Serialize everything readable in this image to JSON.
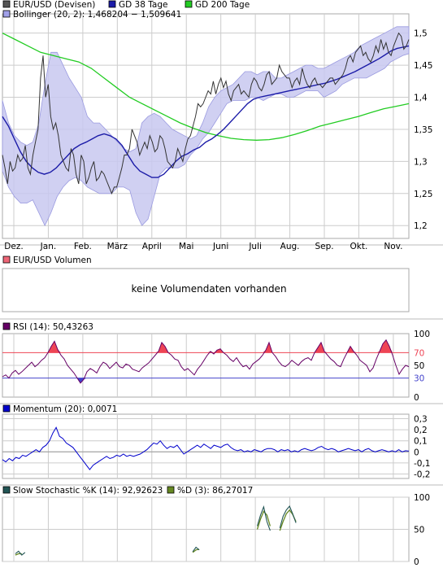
{
  "colors": {
    "price": "#333333",
    "gd38": "#1c1ca8",
    "gd200": "#22cc22",
    "band_fill": "#c8c8f0",
    "band_edge": "#9a9ae0",
    "rsi_line": "#660066",
    "rsi_hi": "#ee4455",
    "rsi_lo": "#4444cc",
    "momentum": "#0000cc",
    "stoch_k": "#225555",
    "stoch_d": "#668822",
    "grid": "#cccccc"
  },
  "chart_data": [
    {
      "id": "price",
      "type": "line",
      "legend": [
        {
          "label": "EUR/USD (Devisen)",
          "color": "#555555"
        },
        {
          "label": "GD 38 Tage",
          "color": "#1c1ca8"
        },
        {
          "label": "GD 200 Tage",
          "color": "#22cc22"
        },
        {
          "label": "Bollinger (20, 2): 1,468204 − 1,509641",
          "color": "#a0a0e8"
        }
      ],
      "xlabels": [
        "Dez.",
        "Jan.",
        "Feb.",
        "März",
        "April",
        "Mai",
        "Juni",
        "Juli",
        "Aug.",
        "Sep.",
        "Okt.",
        "Nov."
      ],
      "yticks": [
        "1,2",
        "1,25",
        "1,3",
        "1,35",
        "1,4",
        "1,45",
        "1,5"
      ],
      "ylim": [
        1.18,
        1.53
      ],
      "series": [
        {
          "name": "EUR/USD (Devisen)",
          "values": [
            1.31,
            1.29,
            1.265,
            1.3,
            1.285,
            1.29,
            1.31,
            1.3,
            1.305,
            1.325,
            1.29,
            1.28,
            1.31,
            1.33,
            1.35,
            1.43,
            1.465,
            1.4,
            1.42,
            1.37,
            1.35,
            1.36,
            1.34,
            1.31,
            1.3,
            1.29,
            1.285,
            1.32,
            1.31,
            1.28,
            1.265,
            1.31,
            1.3,
            1.265,
            1.275,
            1.29,
            1.3,
            1.27,
            1.275,
            1.285,
            1.28,
            1.27,
            1.26,
            1.25,
            1.26,
            1.26,
            1.275,
            1.29,
            1.31,
            1.31,
            1.32,
            1.35,
            1.34,
            1.33,
            1.31,
            1.32,
            1.33,
            1.32,
            1.34,
            1.33,
            1.315,
            1.32,
            1.34,
            1.335,
            1.32,
            1.3,
            1.295,
            1.29,
            1.3,
            1.32,
            1.31,
            1.3,
            1.32,
            1.335,
            1.34,
            1.355,
            1.37,
            1.39,
            1.385,
            1.39,
            1.4,
            1.41,
            1.405,
            1.425,
            1.405,
            1.42,
            1.43,
            1.415,
            1.425,
            1.405,
            1.395,
            1.41,
            1.415,
            1.42,
            1.405,
            1.41,
            1.405,
            1.4,
            1.42,
            1.43,
            1.425,
            1.415,
            1.41,
            1.42,
            1.435,
            1.44,
            1.42,
            1.425,
            1.43,
            1.45,
            1.44,
            1.435,
            1.43,
            1.43,
            1.415,
            1.425,
            1.43,
            1.42,
            1.445,
            1.43,
            1.42,
            1.415,
            1.425,
            1.43,
            1.42,
            1.42,
            1.415,
            1.42,
            1.425,
            1.43,
            1.43,
            1.42,
            1.425,
            1.43,
            1.435,
            1.445,
            1.46,
            1.465,
            1.455,
            1.47,
            1.475,
            1.48,
            1.465,
            1.47,
            1.46,
            1.455,
            1.465,
            1.48,
            1.47,
            1.49,
            1.475,
            1.485,
            1.47,
            1.465,
            1.48,
            1.49,
            1.5,
            1.495,
            1.475,
            1.48,
            1.49
          ]
        },
        {
          "name": "GD 38 Tage",
          "values": [
            1.37,
            1.355,
            1.335,
            1.315,
            1.3,
            1.29,
            1.283,
            1.28,
            1.283,
            1.29,
            1.3,
            1.31,
            1.32,
            1.326,
            1.33,
            1.335,
            1.34,
            1.343,
            1.34,
            1.335,
            1.325,
            1.31,
            1.295,
            1.285,
            1.28,
            1.275,
            1.275,
            1.28,
            1.29,
            1.3,
            1.308,
            1.312,
            1.318,
            1.322,
            1.33,
            1.335,
            1.342,
            1.35,
            1.36,
            1.37,
            1.38,
            1.39,
            1.397,
            1.4,
            1.402,
            1.404,
            1.406,
            1.408,
            1.41,
            1.412,
            1.414,
            1.416,
            1.418,
            1.42,
            1.422,
            1.425,
            1.428,
            1.432,
            1.436,
            1.44,
            1.445,
            1.45,
            1.455,
            1.46,
            1.466,
            1.472,
            1.476,
            1.478,
            1.48
          ]
        },
        {
          "name": "GD 200 Tage",
          "values": [
            1.5,
            1.49,
            1.48,
            1.47,
            1.465,
            1.46,
            1.455,
            1.445,
            1.43,
            1.415,
            1.4,
            1.39,
            1.38,
            1.37,
            1.36,
            1.352,
            1.345,
            1.34,
            1.336,
            1.334,
            1.333,
            1.334,
            1.337,
            1.342,
            1.348,
            1.355,
            1.36,
            1.365,
            1.37,
            1.376,
            1.382,
            1.386,
            1.39
          ]
        },
        {
          "name": "Bollinger upper",
          "values": [
            1.395,
            1.36,
            1.34,
            1.33,
            1.325,
            1.33,
            1.36,
            1.42,
            1.47,
            1.47,
            1.45,
            1.43,
            1.415,
            1.4,
            1.37,
            1.36,
            1.36,
            1.35,
            1.34,
            1.33,
            1.32,
            1.315,
            1.32,
            1.36,
            1.37,
            1.375,
            1.37,
            1.36,
            1.35,
            1.345,
            1.34,
            1.335,
            1.34,
            1.36,
            1.385,
            1.4,
            1.41,
            1.415,
            1.42,
            1.43,
            1.44,
            1.44,
            1.435,
            1.44,
            1.44,
            1.43,
            1.43,
            1.435,
            1.44,
            1.445,
            1.45,
            1.45,
            1.445,
            1.445,
            1.45,
            1.455,
            1.46,
            1.465,
            1.47,
            1.48,
            1.485,
            1.49,
            1.495,
            1.5,
            1.505,
            1.51,
            1.51,
            1.51
          ]
        },
        {
          "name": "Bollinger lower",
          "values": [
            1.285,
            1.26,
            1.245,
            1.235,
            1.235,
            1.24,
            1.22,
            1.2,
            1.22,
            1.245,
            1.26,
            1.27,
            1.275,
            1.27,
            1.26,
            1.255,
            1.25,
            1.25,
            1.25,
            1.26,
            1.26,
            1.255,
            1.22,
            1.2,
            1.21,
            1.245,
            1.28,
            1.29,
            1.29,
            1.29,
            1.295,
            1.31,
            1.32,
            1.335,
            1.345,
            1.36,
            1.375,
            1.39,
            1.395,
            1.395,
            1.395,
            1.4,
            1.4,
            1.395,
            1.4,
            1.405,
            1.405,
            1.4,
            1.4,
            1.405,
            1.41,
            1.41,
            1.41,
            1.4,
            1.405,
            1.41,
            1.42,
            1.425,
            1.43,
            1.43,
            1.43,
            1.435,
            1.44,
            1.445,
            1.455,
            1.46,
            1.465,
            1.468
          ]
        }
      ]
    },
    {
      "id": "volume",
      "type": "line",
      "legend": [
        {
          "label": "EUR/USD Volumen",
          "color": "#ee6677"
        }
      ],
      "message": "keine Volumendaten vorhanden"
    },
    {
      "id": "rsi",
      "type": "line",
      "legend": [
        {
          "label": "RSI (14): 50,43263",
          "color": "#660066"
        }
      ],
      "yticks": [
        "0",
        "30",
        "50",
        "70",
        "100"
      ],
      "ylim": [
        0,
        100
      ],
      "levels": [
        30,
        70
      ],
      "series": [
        {
          "name": "RSI (14)",
          "values": [
            32,
            35,
            30,
            38,
            42,
            36,
            40,
            45,
            50,
            55,
            48,
            52,
            58,
            62,
            70,
            80,
            88,
            75,
            66,
            60,
            50,
            44,
            38,
            30,
            22,
            28,
            40,
            45,
            42,
            38,
            48,
            55,
            52,
            45,
            50,
            55,
            48,
            46,
            52,
            50,
            44,
            42,
            40,
            46,
            50,
            54,
            60,
            66,
            72,
            86,
            80,
            70,
            66,
            60,
            58,
            48,
            42,
            45,
            40,
            35,
            44,
            50,
            58,
            66,
            72,
            68,
            74,
            76,
            70,
            66,
            60,
            56,
            62,
            54,
            48,
            50,
            44,
            52,
            56,
            60,
            66,
            74,
            86,
            70,
            64,
            56,
            50,
            48,
            52,
            58,
            54,
            50,
            56,
            60,
            62,
            58,
            70,
            78,
            86,
            72,
            66,
            60,
            56,
            50,
            48,
            60,
            70,
            80,
            72,
            66,
            58,
            54,
            50,
            40,
            46,
            60,
            72,
            84,
            90,
            80,
            66,
            50,
            36,
            44,
            50,
            48
          ]
        }
      ]
    },
    {
      "id": "momentum",
      "type": "line",
      "legend": [
        {
          "label": "Momentum (20): 0,0071",
          "color": "#0000cc"
        }
      ],
      "yticks": [
        "-0,2",
        "-0,1",
        "0",
        "0,1",
        "0,2",
        "0,3"
      ],
      "ylim": [
        -0.24,
        0.34
      ],
      "series": [
        {
          "name": "Momentum (20)",
          "values": [
            -0.07,
            -0.09,
            -0.06,
            -0.08,
            -0.05,
            -0.06,
            -0.03,
            -0.04,
            -0.02,
            0.0,
            0.02,
            0.0,
            0.04,
            0.06,
            0.1,
            0.17,
            0.22,
            0.14,
            0.12,
            0.08,
            0.06,
            0.04,
            0.0,
            -0.04,
            -0.08,
            -0.12,
            -0.16,
            -0.12,
            -0.1,
            -0.08,
            -0.06,
            -0.04,
            -0.06,
            -0.05,
            -0.03,
            -0.04,
            -0.02,
            -0.04,
            -0.03,
            -0.04,
            -0.03,
            -0.02,
            0.0,
            0.02,
            0.05,
            0.08,
            0.07,
            0.1,
            0.06,
            0.03,
            0.05,
            0.04,
            0.06,
            0.02,
            -0.02,
            0.0,
            0.02,
            0.04,
            0.06,
            0.04,
            0.07,
            0.05,
            0.03,
            0.06,
            0.05,
            0.04,
            0.06,
            0.07,
            0.04,
            0.02,
            0.01,
            0.02,
            0.0,
            0.01,
            0.0,
            0.02,
            0.01,
            0.0,
            0.02,
            0.03,
            0.03,
            0.02,
            0.0,
            0.02,
            0.01,
            0.02,
            0.0,
            0.01,
            0.0,
            0.02,
            0.03,
            0.02,
            0.01,
            0.02,
            0.04,
            0.05,
            0.03,
            0.02,
            0.03,
            0.02,
            0.0,
            0.01,
            0.02,
            0.03,
            0.02,
            0.01,
            0.02,
            0.0,
            0.02,
            0.03,
            0.01,
            0.0,
            0.01,
            0.02,
            0.01,
            0.0,
            0.01,
            0.0,
            0.02,
            0.0,
            0.01,
            0.007
          ]
        }
      ]
    },
    {
      "id": "stochastic",
      "type": "line",
      "legend": [
        {
          "label": "Slow Stochastic %K (14): 92,92623",
          "color": "#225555"
        },
        {
          "label": "%D (3): 86,27017",
          "color": "#668822"
        }
      ],
      "yticks": [
        "0",
        "50",
        "100"
      ],
      "ylim": [
        0,
        100
      ],
      "series": [
        {
          "name": "Slow Stochastic %K (14)",
          "fragments": [
            [
              [
                4,
                12
              ],
              [
                5,
                16
              ],
              [
                6,
                10
              ],
              [
                7,
                14
              ]
            ],
            [
              [
                59,
                15
              ],
              [
                60,
                22
              ],
              [
                61,
                18
              ]
            ],
            [
              [
                79,
                55
              ],
              [
                80,
                72
              ],
              [
                81,
                85
              ],
              [
                82,
                62
              ],
              [
                83,
                48
              ]
            ],
            [
              [
                86,
                52
              ],
              [
                87,
                70
              ],
              [
                88,
                80
              ],
              [
                89,
                86
              ],
              [
                90,
                74
              ],
              [
                91,
                60
              ]
            ]
          ]
        },
        {
          "name": "%D (3)",
          "fragments": [
            [
              [
                4,
                10
              ],
              [
                5,
                12
              ],
              [
                6,
                12
              ]
            ],
            [
              [
                59,
                14
              ],
              [
                60,
                18
              ],
              [
                61,
                19
              ]
            ],
            [
              [
                79,
                50
              ],
              [
                80,
                66
              ],
              [
                81,
                78
              ],
              [
                82,
                72
              ],
              [
                83,
                55
              ]
            ],
            [
              [
                86,
                48
              ],
              [
                87,
                62
              ],
              [
                88,
                74
              ],
              [
                89,
                80
              ],
              [
                90,
                73
              ],
              [
                91,
                62
              ]
            ]
          ]
        }
      ]
    }
  ]
}
